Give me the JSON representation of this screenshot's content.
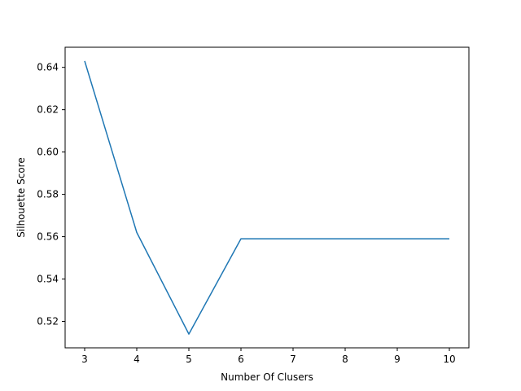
{
  "chart_data": {
    "type": "line",
    "title": "",
    "xlabel": "Number Of Clusers",
    "ylabel": "Silhouette Score",
    "x": [
      3,
      4,
      5,
      6,
      7,
      8,
      9,
      10
    ],
    "series": [
      {
        "values": [
          0.643,
          0.562,
          0.514,
          0.559,
          0.559,
          0.559,
          0.559,
          0.559
        ]
      }
    ],
    "xlim": [
      2.625,
      10.375
    ],
    "ylim": [
      0.5075,
      0.6495
    ],
    "xticks": [
      3,
      4,
      5,
      6,
      7,
      8,
      9,
      10
    ],
    "xtick_labels": [
      "3",
      "4",
      "5",
      "6",
      "7",
      "8",
      "9",
      "10"
    ],
    "yticks": [
      0.52,
      0.54,
      0.56,
      0.58,
      0.6,
      0.62,
      0.64
    ],
    "ytick_labels": [
      "0.52",
      "0.54",
      "0.56",
      "0.58",
      "0.60",
      "0.62",
      "0.64"
    ],
    "grid": false,
    "colors": {
      "line": "#1f77b4",
      "axes": "#000000",
      "background": "#ffffff"
    }
  }
}
